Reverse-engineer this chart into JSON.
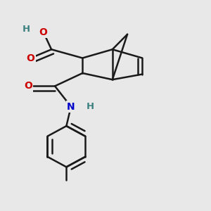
{
  "background_color": "#e8e8e8",
  "bond_color": "#1a1a1a",
  "bond_width": 1.8,
  "atom_colors": {
    "O": "#cc0000",
    "N": "#0000cc",
    "H_teal": "#3d8080",
    "C": "#1a1a1a"
  },
  "figsize": [
    3.0,
    3.0
  ],
  "dpi": 100
}
